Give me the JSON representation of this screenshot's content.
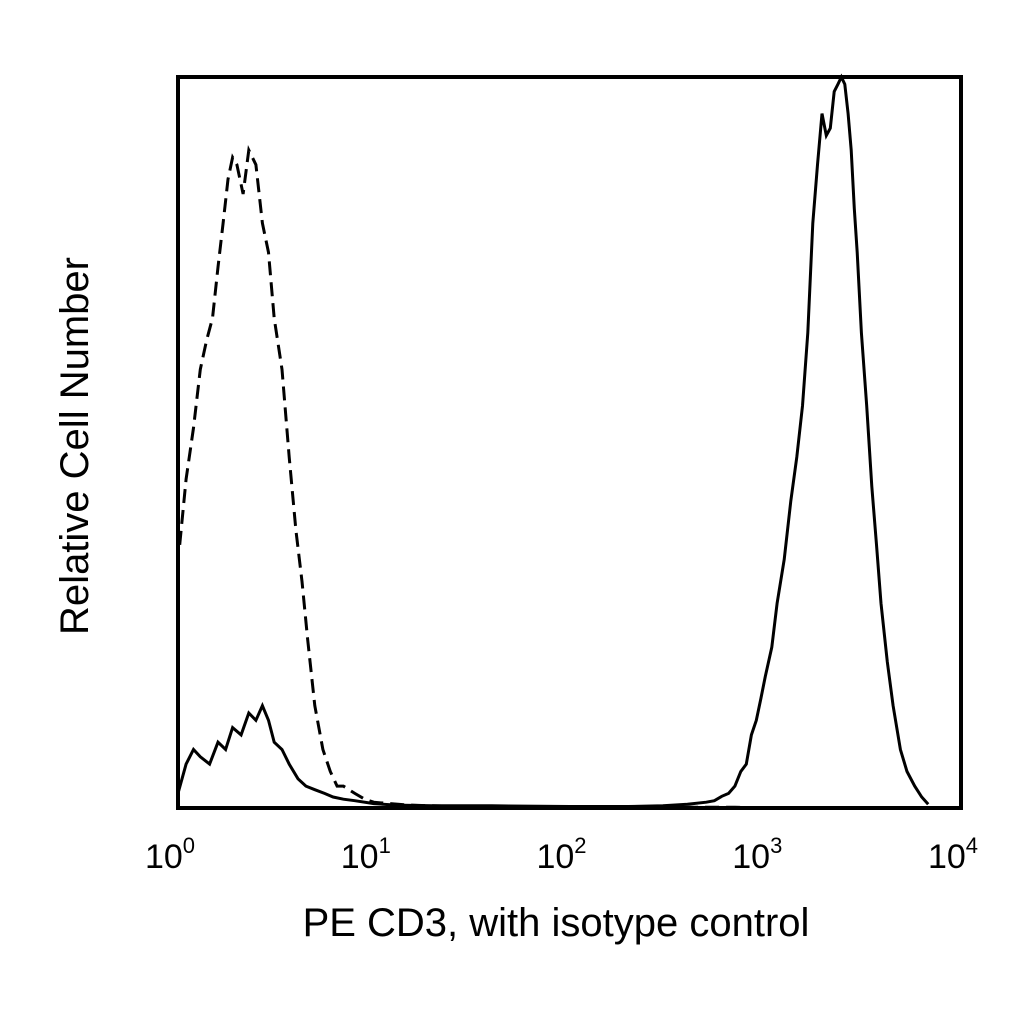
{
  "chart_data": {
    "type": "line",
    "title": "",
    "xlabel": "PE CD3, with isotype control",
    "ylabel": "Relative Cell Number",
    "x_scale": "log",
    "xlim": [
      1,
      10000
    ],
    "ylim": [
      0,
      100
    ],
    "x_ticks": [
      {
        "value": 1,
        "base": "10",
        "exp": "0"
      },
      {
        "value": 10,
        "base": "10",
        "exp": "1"
      },
      {
        "value": 100,
        "base": "10",
        "exp": "2"
      },
      {
        "value": 1000,
        "base": "10",
        "exp": "3"
      },
      {
        "value": 10000,
        "base": "10",
        "exp": "4"
      }
    ],
    "grid": false,
    "legend": "none",
    "series": [
      {
        "style": "dashed",
        "color": "#000000",
        "x": [
          1.02,
          1.1,
          1.2,
          1.3,
          1.4,
          1.5,
          1.6,
          1.7,
          1.8,
          1.9,
          2.0,
          2.15,
          2.3,
          2.5,
          2.7,
          2.9,
          3.1,
          3.4,
          3.7,
          4.0,
          4.3,
          4.6,
          5.0,
          5.5,
          6.0,
          6.5,
          7.0,
          8.0,
          9.0,
          10,
          12,
          15,
          20,
          30,
          50,
          100,
          200,
          400,
          700,
          1000
        ],
        "y": [
          36,
          45,
          52,
          60,
          64,
          67,
          74,
          80,
          86,
          89,
          88,
          84,
          90,
          88,
          80,
          76,
          67,
          60,
          48,
          38,
          31,
          23,
          14,
          8,
          5,
          3,
          3,
          2,
          1.2,
          0.8,
          0.6,
          0.4,
          0.3,
          0.2,
          0.2,
          0.15,
          0.1,
          0.1,
          0.1,
          0
        ]
      },
      {
        "style": "solid",
        "color": "#000000",
        "x": [
          1.0,
          1.1,
          1.2,
          1.3,
          1.45,
          1.6,
          1.75,
          1.9,
          2.1,
          2.3,
          2.5,
          2.7,
          2.9,
          3.1,
          3.4,
          3.7,
          4.1,
          4.5,
          5.0,
          5.6,
          6.2,
          7.0,
          8.0,
          10,
          13,
          20,
          40,
          100,
          200,
          300,
          400,
          500,
          550,
          600,
          650,
          700,
          750,
          800,
          850,
          900,
          950,
          1000,
          1080,
          1150,
          1250,
          1350,
          1450,
          1550,
          1650,
          1750,
          1850,
          1950,
          2050,
          2150,
          2250,
          2350,
          2450,
          2550,
          2650,
          2750,
          2850,
          2950,
          3100,
          3300,
          3500,
          3700,
          3900,
          4200,
          4500,
          4900,
          5300,
          5800,
          6300,
          6800
        ],
        "y": [
          2,
          6,
          8,
          7,
          6,
          9,
          8,
          11,
          10,
          13,
          12,
          14,
          12,
          9,
          8,
          6,
          4,
          3,
          2.5,
          2,
          1.5,
          1.2,
          1,
          0.6,
          0.4,
          0.3,
          0.3,
          0.2,
          0.2,
          0.3,
          0.5,
          0.8,
          1,
          1.6,
          2,
          3,
          5,
          6,
          10,
          12,
          15,
          18,
          22,
          28,
          34,
          42,
          48,
          55,
          65,
          80,
          88,
          95,
          92,
          93,
          98,
          99,
          102,
          99,
          95,
          90,
          82,
          76,
          65,
          55,
          44,
          36,
          28,
          20,
          14,
          8,
          5,
          3,
          1.5,
          0.5
        ]
      }
    ]
  }
}
